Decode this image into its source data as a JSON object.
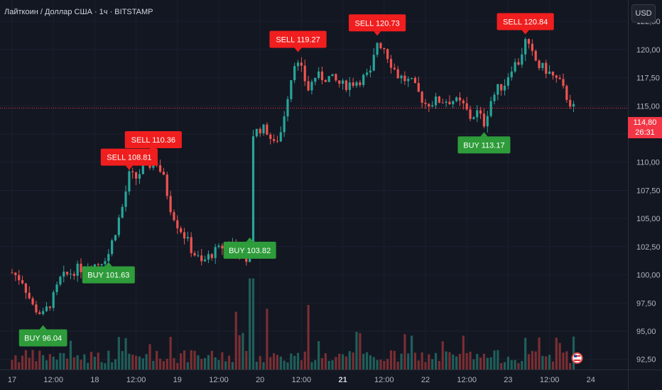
{
  "header": {
    "title": "Лайткоин / Доллар США · 1ч · BITSTAMP",
    "currency_button": "USD"
  },
  "price_badge": {
    "price": "114,80",
    "countdown": "26:31"
  },
  "colors": {
    "background": "#131722",
    "up": "#26a69a",
    "down": "#ef5350",
    "buy_label": "#2e9c3a",
    "sell_label": "#f01e1e",
    "current_price": "#f23645",
    "grid": "#1c2030",
    "axis_text": "#b2b5be"
  },
  "chart_data": {
    "type": "candlestick",
    "y_axis": {
      "ticks": [
        "122,50",
        "120,00",
        "117,50",
        "115,00",
        "112,50",
        "110,00",
        "107,50",
        "105,00",
        "102,50",
        "100,00",
        "97,50",
        "95,00",
        "92,50"
      ],
      "ylim": [
        91.6,
        124.4
      ]
    },
    "x_axis": {
      "ticks": [
        {
          "label": "17",
          "x": 0
        },
        {
          "label": "12:00",
          "x": 12
        },
        {
          "label": "18",
          "x": 24
        },
        {
          "label": "12:00",
          "x": 36
        },
        {
          "label": "19",
          "x": 48
        },
        {
          "label": "12:00",
          "x": 60
        },
        {
          "label": "20",
          "x": 72
        },
        {
          "label": "12:00",
          "x": 84
        },
        {
          "label": "21",
          "x": 96,
          "bold": true
        },
        {
          "label": "12:00",
          "x": 108
        },
        {
          "label": "22",
          "x": 120
        },
        {
          "label": "12:00",
          "x": 132
        },
        {
          "label": "23",
          "x": 144
        },
        {
          "label": "12:00",
          "x": 156
        },
        {
          "label": "24",
          "x": 168
        }
      ]
    },
    "current_price": 114.8,
    "series": [],
    "signals": [
      {
        "type": "buy",
        "label": "BUY 96.04",
        "x": 9,
        "price": 96.04
      },
      {
        "type": "buy",
        "label": "BUY 101.63",
        "x": 28,
        "price": 101.63
      },
      {
        "type": "sell",
        "label": "SELL 108.81",
        "x": 34,
        "price": 108.81
      },
      {
        "type": "sell",
        "label": "SELL 110.36",
        "x": 41,
        "price": 110.36
      },
      {
        "type": "buy",
        "label": "BUY 103.82",
        "x": 69,
        "price": 103.82
      },
      {
        "type": "sell",
        "label": "SELL 119.27",
        "x": 83,
        "price": 119.27
      },
      {
        "type": "sell",
        "label": "SELL 120.73",
        "x": 106,
        "price": 120.73
      },
      {
        "type": "buy",
        "label": "BUY 113.17",
        "x": 137,
        "price": 113.17
      },
      {
        "type": "sell",
        "label": "SELL 120.84",
        "x": 149,
        "price": 120.84
      }
    ]
  }
}
